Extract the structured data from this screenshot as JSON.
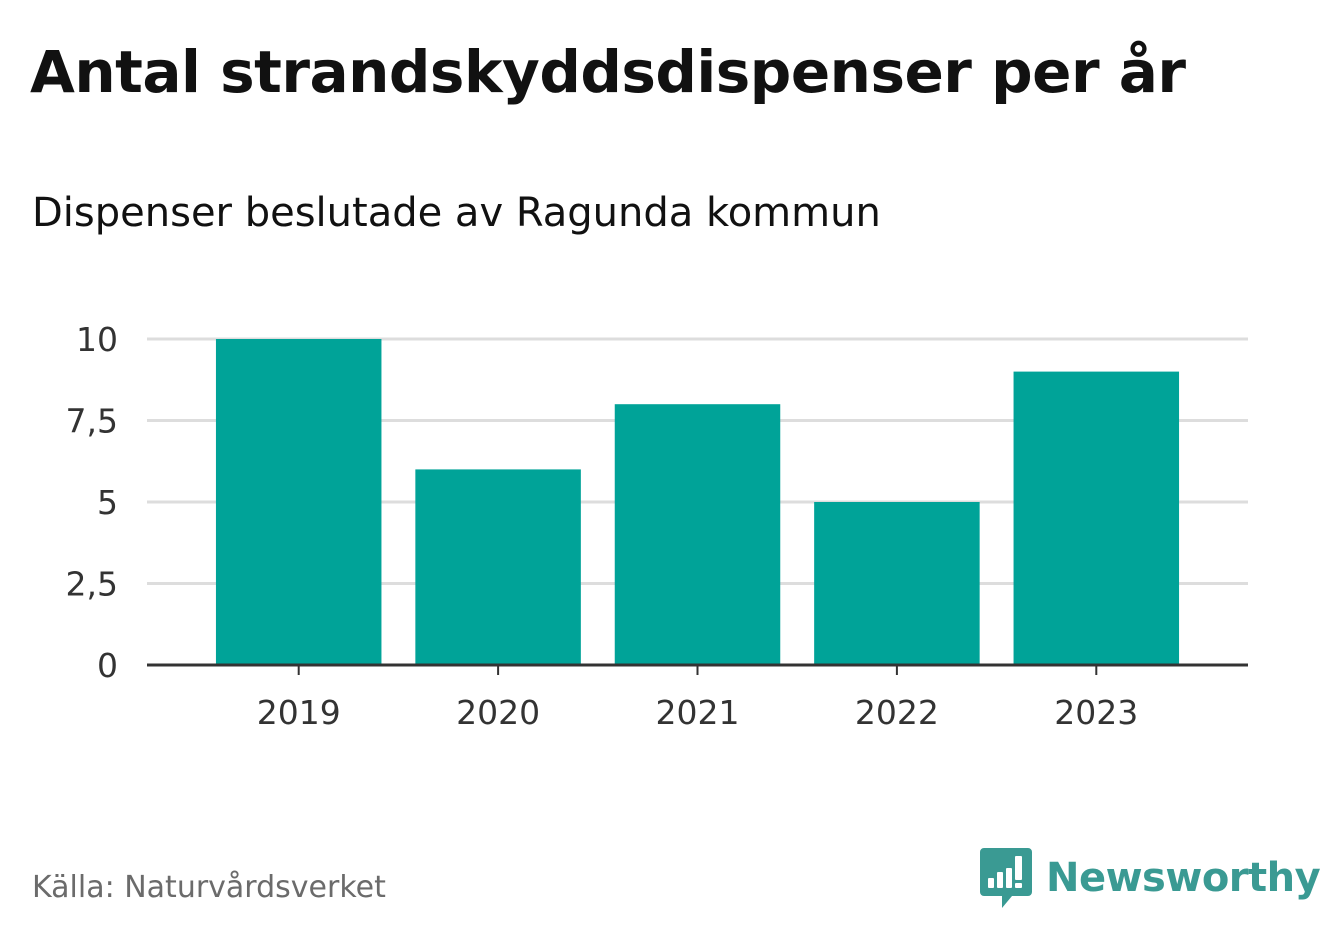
{
  "title": "Antal strandskyddsdispenser per år",
  "subtitle": "Dispenser beslutade av Ragunda kommun",
  "source": "Källa: Naturvårdsverket",
  "brand": {
    "name": "Newsworthy",
    "logo_icon": "newsworthy-logo-icon",
    "color": "#3a9a93"
  },
  "colors": {
    "bar": "#00a398",
    "grid": "#dddddd",
    "axis": "#333333"
  },
  "chart_data": {
    "type": "bar",
    "title": "Antal strandskyddsdispenser per år",
    "subtitle": "Dispenser beslutade av Ragunda kommun",
    "categories": [
      "2019",
      "2020",
      "2021",
      "2022",
      "2023"
    ],
    "values": [
      10,
      6,
      8,
      5,
      9
    ],
    "ylim": [
      0,
      10
    ],
    "yticks": [
      0,
      2.5,
      5,
      7.5,
      10
    ],
    "ytick_labels": [
      "0",
      "2,5",
      "5",
      "7,5",
      "10"
    ],
    "grid": true,
    "legend": "none"
  }
}
